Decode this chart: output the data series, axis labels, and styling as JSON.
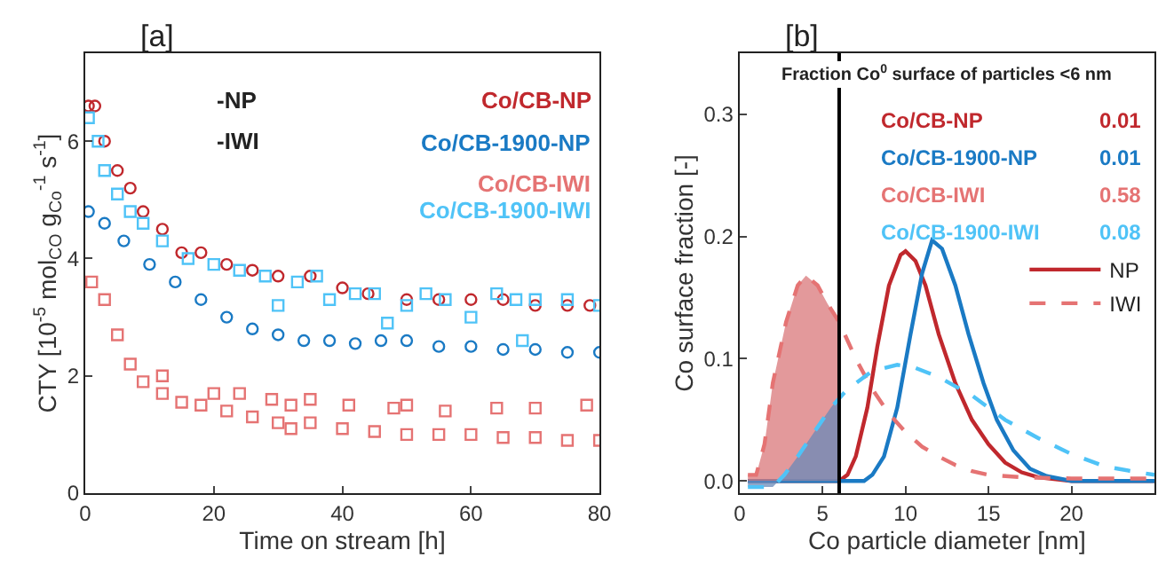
{
  "chart_data": [
    {
      "type": "scatter",
      "title": "[a]",
      "xlabel": "Time on stream [h]",
      "ylabel": "CTY [10$^{-5}$ mol$_{CO}$ g$_{Co}$$^{-1}$ s$^{-1}$]",
      "xlim": [
        0,
        80
      ],
      "xticks": [
        0,
        20,
        40,
        60,
        80
      ],
      "ylim": [
        0,
        7.5
      ],
      "yticks": [
        0,
        2,
        4,
        6
      ],
      "legend": false,
      "annotations": [
        "-NP",
        "-IWI"
      ],
      "series": [
        {
          "name": "Co/CB-NP",
          "color": "#c0282d",
          "marker": "circle",
          "x": [
            0.5,
            1.5,
            3,
            5,
            7,
            9,
            12,
            15,
            18,
            22,
            26,
            30,
            35,
            40,
            44,
            50,
            55,
            60,
            65,
            70,
            75,
            78.5
          ],
          "values": [
            6.6,
            6.6,
            6.0,
            5.5,
            5.2,
            4.8,
            4.5,
            4.1,
            4.1,
            3.9,
            3.8,
            3.7,
            3.7,
            3.5,
            3.4,
            3.3,
            3.3,
            3.3,
            3.3,
            3.2,
            3.2,
            3.2
          ]
        },
        {
          "name": "Co/CB-1900-NP",
          "color": "#1a7ac4",
          "marker": "circle",
          "x": [
            0.5,
            3,
            6,
            10,
            14,
            18,
            22,
            26,
            30,
            34,
            38,
            42,
            46,
            50,
            55,
            60,
            65,
            70,
            75,
            80
          ],
          "values": [
            4.8,
            4.6,
            4.3,
            3.9,
            3.6,
            3.3,
            3.0,
            2.8,
            2.7,
            2.6,
            2.6,
            2.55,
            2.6,
            2.6,
            2.5,
            2.5,
            2.45,
            2.45,
            2.4,
            2.4
          ]
        },
        {
          "name": "Co/CB-IWI",
          "color": "#e57373",
          "marker": "square",
          "x": [
            1,
            3,
            5,
            7,
            9,
            12,
            15,
            18,
            22,
            26,
            30,
            32,
            35,
            40,
            45,
            50,
            55,
            60,
            65,
            70,
            75,
            80,
            12,
            20,
            24,
            29,
            32,
            35,
            41,
            48,
            50,
            56,
            64,
            70,
            78
          ],
          "values": [
            3.6,
            3.3,
            2.7,
            2.2,
            1.9,
            1.7,
            1.55,
            1.5,
            1.4,
            1.3,
            1.2,
            1.1,
            1.2,
            1.1,
            1.05,
            1.0,
            1.0,
            1.0,
            0.95,
            0.95,
            0.9,
            0.9,
            2.0,
            1.7,
            1.7,
            1.6,
            1.5,
            1.6,
            1.5,
            1.45,
            1.5,
            1.4,
            1.45,
            1.45,
            1.5
          ]
        },
        {
          "name": "Co/CB-1900-IWI",
          "color": "#4fc3f7",
          "marker": "square",
          "x": [
            0.5,
            2,
            3,
            5,
            7,
            9,
            12,
            16,
            20,
            24,
            28,
            30,
            33,
            36,
            38,
            42,
            45,
            47,
            50,
            53,
            56,
            60,
            64,
            67,
            68,
            70,
            75,
            80
          ],
          "values": [
            6.4,
            6.0,
            5.5,
            5.1,
            4.8,
            4.6,
            4.3,
            4.0,
            3.9,
            3.8,
            3.7,
            3.2,
            3.6,
            3.7,
            3.3,
            3.4,
            3.4,
            2.9,
            3.2,
            3.4,
            3.3,
            3.0,
            3.4,
            3.3,
            2.6,
            3.3,
            3.3,
            3.2
          ]
        }
      ]
    },
    {
      "type": "line",
      "title": "[b]",
      "xlabel": "Co particle diameter [nm]",
      "ylabel": "Co surface fraction [-]",
      "xlim": [
        0,
        25
      ],
      "xticks": [
        0,
        5,
        10,
        15,
        20
      ],
      "ylim": [
        -0.01,
        0.35
      ],
      "yticks": [
        {
          "value": 0,
          "label": "0.0"
        },
        {
          "value": 0.1,
          "label": "0.1"
        },
        {
          "value": 0.2,
          "label": "0.2"
        },
        {
          "value": 0.3,
          "label": "0.3"
        }
      ],
      "legend": "right",
      "ref_lines": [
        {
          "axis": "x",
          "value": 6,
          "color": "#000000"
        }
      ],
      "annotations": [
        "Fraction Co$^{0}$ surface of particles <6 nm",
        "Co/CB-NP",
        "0.01",
        "Co/CB-1900-NP",
        "0.01",
        "Co/CB-IWI",
        "0.58",
        "Co/CB-1900-IWI",
        "0.08"
      ],
      "series": [
        {
          "name": "NP",
          "color": "#c0282d",
          "line_style": "solid",
          "x": [
            0.5,
            6,
            6.5,
            7,
            7.7,
            8.3,
            9,
            9.7,
            10,
            10.6,
            11.2,
            12,
            13,
            14,
            15,
            16,
            17,
            18,
            20,
            25
          ],
          "values": [
            0,
            0,
            0.005,
            0.02,
            0.06,
            0.11,
            0.16,
            0.185,
            0.188,
            0.18,
            0.16,
            0.12,
            0.08,
            0.05,
            0.03,
            0.015,
            0.007,
            0.003,
            0,
            0
          ]
        },
        {
          "color": "#1a7ac4",
          "line_style": "solid",
          "x": [
            0.5,
            7.5,
            8,
            8.7,
            9.5,
            10.3,
            11,
            11.6,
            12.2,
            13,
            13.8,
            14.7,
            15.5,
            16.5,
            17.5,
            18.5,
            20,
            25
          ],
          "values": [
            0,
            0,
            0.005,
            0.02,
            0.06,
            0.12,
            0.17,
            0.197,
            0.19,
            0.16,
            0.12,
            0.08,
            0.05,
            0.025,
            0.01,
            0.004,
            0,
            0
          ]
        },
        {
          "type": "area",
          "color": "#d9777a",
          "x": [
            0.5,
            1,
            1.5,
            2,
            2.8,
            3.5,
            4,
            4.7,
            5.3,
            6
          ],
          "values": [
            0.005,
            0.005,
            0.03,
            0.08,
            0.13,
            0.16,
            0.168,
            0.16,
            0.145,
            0.13
          ]
        },
        {
          "type": "area",
          "color": "#6a8ab8",
          "x": [
            0.5,
            2,
            2.7,
            3.5,
            4.5,
            5.5,
            6
          ],
          "values": [
            -0.005,
            -0.005,
            0.005,
            0.02,
            0.04,
            0.06,
            0.068
          ]
        },
        {
          "name": "IWI",
          "color": "#e57373",
          "line_style": "dashed",
          "x": [
            0.5,
            1,
            1.5,
            2,
            2.8,
            3.5,
            4,
            4.7,
            5.3,
            6,
            7,
            8,
            9,
            10,
            11,
            12,
            13,
            14,
            15,
            17,
            20,
            25
          ],
          "values": [
            0.005,
            0.005,
            0.03,
            0.08,
            0.13,
            0.16,
            0.168,
            0.16,
            0.145,
            0.13,
            0.1,
            0.075,
            0.055,
            0.04,
            0.028,
            0.02,
            0.013,
            0.008,
            0.005,
            0.003,
            0.002,
            0.002
          ]
        },
        {
          "color": "#4fc3f7",
          "line_style": "dashed",
          "x": [
            0.5,
            2,
            2.7,
            3.5,
            4.5,
            5.5,
            6.5,
            8,
            9.5,
            10.5,
            12,
            14,
            16,
            18,
            20,
            22,
            24,
            25
          ],
          "values": [
            -0.005,
            -0.005,
            0.005,
            0.02,
            0.04,
            0.06,
            0.075,
            0.09,
            0.095,
            0.093,
            0.085,
            0.07,
            0.05,
            0.035,
            0.022,
            0.012,
            0.007,
            0.005
          ]
        }
      ]
    }
  ]
}
